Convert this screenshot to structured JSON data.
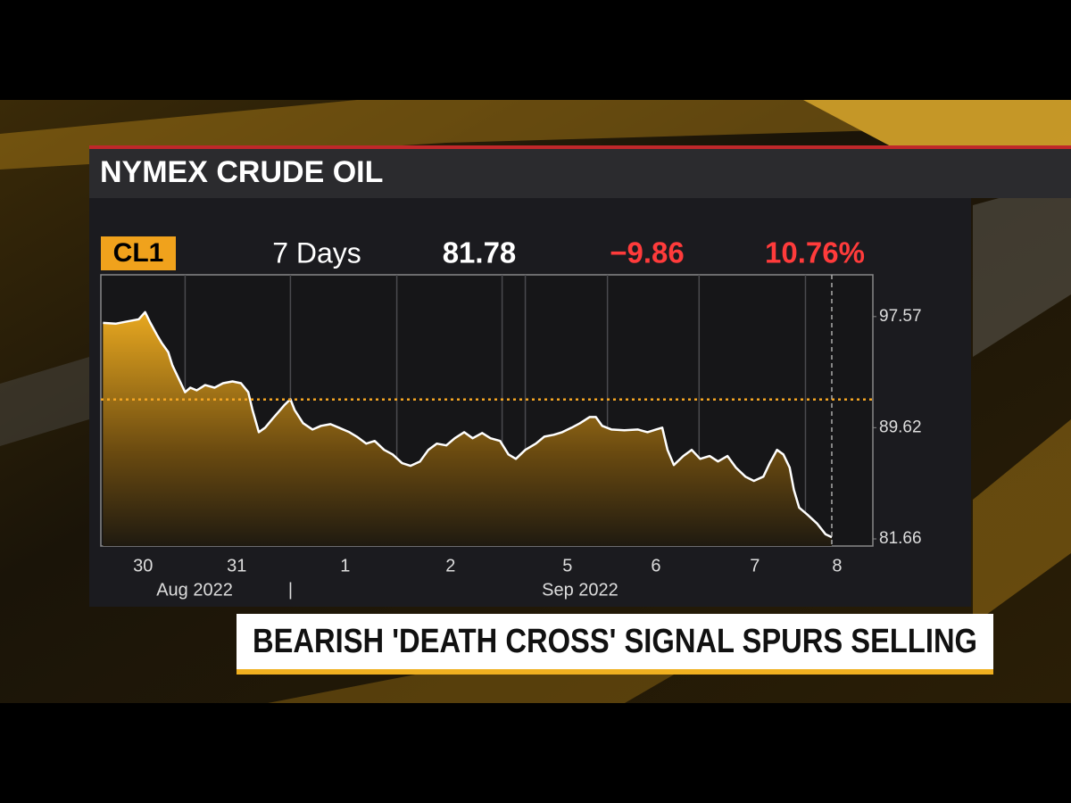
{
  "chart_data": {
    "type": "area-line",
    "title": "NYMEX CRUDE OIL",
    "ticker": "CL1",
    "period": "7 Days",
    "last": "81.78",
    "change": "−9.86",
    "change_pct": "10.76%",
    "headline": "BEARISH 'DEATH CROSS' SIGNAL SPURS SELLING",
    "xlim": [
      0,
      7.33
    ],
    "ylim": [
      81.15,
      100.56
    ],
    "yticks": [
      97.57,
      89.62,
      81.66
    ],
    "xticks": [
      {
        "value": 0.4,
        "label": "30"
      },
      {
        "value": 1.29,
        "label": "31"
      },
      {
        "value": 2.32,
        "label": "1"
      },
      {
        "value": 3.32,
        "label": "2"
      },
      {
        "value": 4.43,
        "label": "5"
      },
      {
        "value": 5.27,
        "label": "6"
      },
      {
        "value": 6.21,
        "label": "7"
      },
      {
        "value": 6.99,
        "label": "8"
      }
    ],
    "xgroups": [
      {
        "value": 0.89,
        "label": "Aug 2022"
      },
      {
        "value": 1.8,
        "label": "|"
      },
      {
        "value": 4.55,
        "label": "Sep 2022"
      }
    ],
    "xgrid": [
      0.8,
      1.8,
      2.81,
      3.81,
      4.03,
      4.81,
      5.68,
      6.69
    ],
    "reference_line": 91.64,
    "reference_color": "#f5a623",
    "series": [
      {
        "color": "#ffffff",
        "x": [
          0.02,
          0.14,
          0.27,
          0.36,
          0.42,
          0.47,
          0.53,
          0.58,
          0.64,
          0.68,
          0.74,
          0.8,
          0.85,
          0.91,
          0.99,
          1.08,
          1.16,
          1.25,
          1.33,
          1.4,
          1.44,
          1.5,
          1.56,
          1.63,
          1.69,
          1.74,
          1.8,
          1.84,
          1.92,
          2.01,
          2.09,
          2.18,
          2.26,
          2.36,
          2.43,
          2.52,
          2.6,
          2.69,
          2.77,
          2.86,
          2.94,
          3.03,
          3.11,
          3.19,
          3.28,
          3.36,
          3.45,
          3.53,
          3.62,
          3.7,
          3.79,
          3.87,
          3.94,
          4.03,
          4.13,
          4.21,
          4.3,
          4.38,
          4.47,
          4.55,
          4.64,
          4.7,
          4.76,
          4.85,
          4.97,
          5.1,
          5.19,
          5.27,
          5.33,
          5.38,
          5.44,
          5.53,
          5.61,
          5.69,
          5.78,
          5.86,
          5.95,
          6.03,
          6.12,
          6.2,
          6.29,
          6.35,
          6.42,
          6.48,
          6.54,
          6.58,
          6.63,
          6.71,
          6.8,
          6.88,
          6.94
        ],
        "values": [
          97.12,
          97.06,
          97.25,
          97.38,
          97.89,
          97.12,
          96.3,
          95.66,
          95.03,
          94.07,
          93.12,
          92.16,
          92.48,
          92.29,
          92.67,
          92.48,
          92.8,
          92.93,
          92.8,
          92.16,
          90.89,
          89.3,
          89.62,
          90.26,
          90.77,
          91.21,
          91.66,
          90.89,
          89.94,
          89.49,
          89.75,
          89.87,
          89.62,
          89.3,
          88.98,
          88.48,
          88.67,
          88.03,
          87.71,
          87.08,
          86.89,
          87.2,
          88.03,
          88.48,
          88.35,
          88.86,
          89.3,
          88.86,
          89.24,
          88.86,
          88.67,
          87.71,
          87.39,
          88.03,
          88.48,
          88.98,
          89.11,
          89.3,
          89.62,
          89.94,
          90.38,
          90.38,
          89.75,
          89.49,
          89.43,
          89.49,
          89.3,
          89.49,
          89.62,
          88.03,
          86.95,
          87.59,
          88.03,
          87.39,
          87.59,
          87.2,
          87.59,
          86.76,
          86.12,
          85.81,
          86.12,
          87.08,
          88.03,
          87.71,
          86.76,
          85.17,
          83.9,
          83.39,
          82.76,
          82.0,
          81.78
        ]
      }
    ]
  }
}
